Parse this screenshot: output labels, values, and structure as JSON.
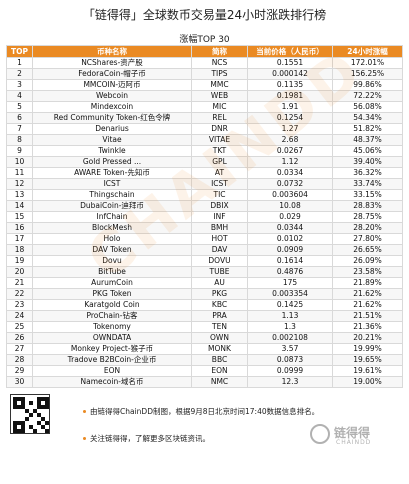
{
  "title": "「链得得」全球数币交易量24小时涨跌排行榜",
  "subtitle": "涨幅TOP 30",
  "watermark": "CHAINDD",
  "chart_data": {
    "type": "table",
    "columns": [
      "TOP",
      "币种名称",
      "简称",
      "当前价格（人民币）",
      "24小时涨幅"
    ],
    "rows": [
      [
        "1",
        "NCShares-资产股",
        "NCS",
        "0.1551",
        "172.01%"
      ],
      [
        "2",
        "FedoraCoin-帽子币",
        "TIPS",
        "0.000142",
        "156.25%"
      ],
      [
        "3",
        "MMCOIN-迈阿币",
        "MMC",
        "0.1135",
        "99.86%"
      ],
      [
        "4",
        "Webcoin",
        "WEB",
        "0.1981",
        "72.22%"
      ],
      [
        "5",
        "Mindexcoin",
        "MIC",
        "1.91",
        "56.08%"
      ],
      [
        "6",
        "Red Community Token-红色令牌",
        "REL",
        "0.1254",
        "54.34%"
      ],
      [
        "7",
        "Denarius",
        "DNR",
        "1.27",
        "51.82%"
      ],
      [
        "8",
        "Vitae",
        "VITAE",
        "2.68",
        "48.37%"
      ],
      [
        "9",
        "Twinkle",
        "TKT",
        "0.0267",
        "45.06%"
      ],
      [
        "10",
        "Gold Pressed ...",
        "GPL",
        "1.12",
        "39.40%"
      ],
      [
        "11",
        "AWARE Token-先知币",
        "AT",
        "0.0334",
        "36.32%"
      ],
      [
        "12",
        "ICST",
        "ICST",
        "0.0732",
        "33.74%"
      ],
      [
        "13",
        "Thingschain",
        "TIC",
        "0.003604",
        "33.15%"
      ],
      [
        "14",
        "DubaiCoin-迪拜币",
        "DBIX",
        "10.08",
        "28.83%"
      ],
      [
        "15",
        "InfChain",
        "INF",
        "0.029",
        "28.75%"
      ],
      [
        "16",
        "BlockMesh",
        "BMH",
        "0.0344",
        "28.20%"
      ],
      [
        "17",
        "Holo",
        "HOT",
        "0.0102",
        "27.80%"
      ],
      [
        "18",
        "DAV Token",
        "DAV",
        "0.0909",
        "26.65%"
      ],
      [
        "19",
        "Dovu",
        "DOVU",
        "0.1614",
        "26.09%"
      ],
      [
        "20",
        "BitTube",
        "TUBE",
        "0.4876",
        "23.58%"
      ],
      [
        "21",
        "AurumCoin",
        "AU",
        "175",
        "21.89%"
      ],
      [
        "22",
        "PKG Token",
        "PKG",
        "0.003354",
        "21.62%"
      ],
      [
        "23",
        "Karatgold Coin",
        "KBC",
        "0.1425",
        "21.62%"
      ],
      [
        "24",
        "ProChain-钻客",
        "PRA",
        "1.13",
        "21.51%"
      ],
      [
        "25",
        "Tokenomy",
        "TEN",
        "1.3",
        "21.36%"
      ],
      [
        "26",
        "OWNDATA",
        "OWN",
        "0.002108",
        "20.21%"
      ],
      [
        "27",
        "Monkey Project-猴子币",
        "MONK",
        "3.57",
        "19.99%"
      ],
      [
        "28",
        "Tradove B2BCoin-企业币",
        "BBC",
        "0.0873",
        "19.65%"
      ],
      [
        "29",
        "EON",
        "EON",
        "0.0999",
        "19.61%"
      ],
      [
        "30",
        "Namecoin-域名币",
        "NMC",
        "12.3",
        "19.00%"
      ]
    ]
  },
  "footer": {
    "line1": "由链得得ChainDD制图，根据9月8日北京时间17:40数据信息排名。",
    "line2": "关注链得得，了解更多区块链资讯。",
    "logo_text": "链得得",
    "logo_sub": "CHAINDD"
  },
  "colors": {
    "header_bg": "#ea8a23",
    "header_text": "#ffffff",
    "grid": "#d9d9d9",
    "watermark": "#ea8a23"
  }
}
